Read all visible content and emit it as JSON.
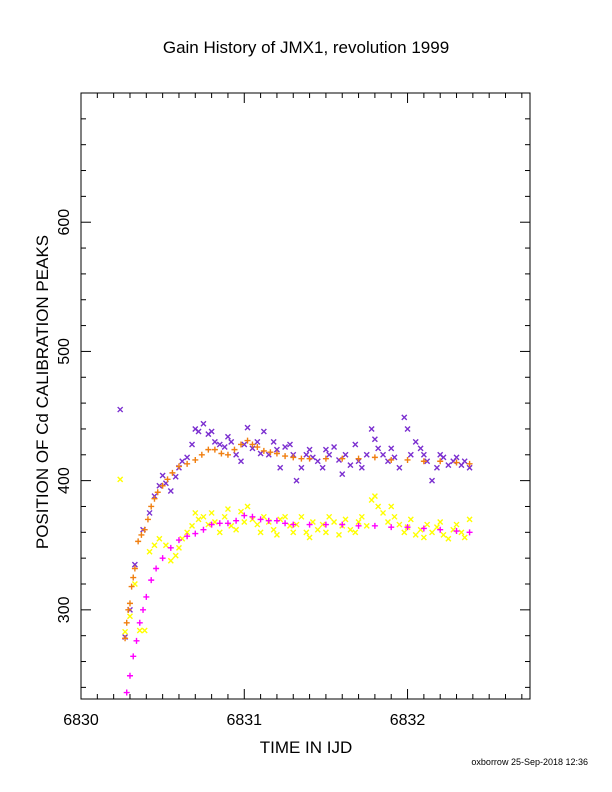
{
  "colors": {
    "background": "#ffffff",
    "axes": "#000000",
    "purple": "#7b2fd0",
    "orange": "#f07f10",
    "yellow": "#ffff00",
    "magenta": "#ff00ff"
  },
  "footer": "oxborrow 25-Sep-2018 12:36",
  "chart_data": {
    "type": "scatter",
    "title": "Gain History of JMX1, revolution 1999",
    "xlabel": "TIME IN IJD",
    "ylabel": "POSITION OF Cd CALIBRATION PEAKS",
    "xlim": [
      6830.0,
      6832.75
    ],
    "ylim": [
      231,
      700
    ],
    "xticks": [
      6830,
      6831,
      6832
    ],
    "yticks": [
      300,
      400,
      500,
      600
    ],
    "grid": false,
    "legend": "none",
    "series": [
      {
        "color": "purple",
        "marker": "x",
        "points": [
          [
            6830.24,
            455
          ],
          [
            6830.27,
            279
          ],
          [
            6830.3,
            300
          ],
          [
            6830.33,
            335
          ],
          [
            6830.38,
            362
          ],
          [
            6830.42,
            375
          ],
          [
            6830.45,
            388
          ],
          [
            6830.48,
            396
          ],
          [
            6830.5,
            404
          ],
          [
            6830.52,
            398
          ],
          [
            6830.55,
            392
          ],
          [
            6830.58,
            403
          ],
          [
            6830.6,
            410
          ],
          [
            6830.62,
            415
          ],
          [
            6830.65,
            418
          ],
          [
            6830.68,
            428
          ],
          [
            6830.7,
            440
          ],
          [
            6830.72,
            438
          ],
          [
            6830.75,
            444
          ],
          [
            6830.78,
            436
          ],
          [
            6830.8,
            438
          ],
          [
            6830.82,
            430
          ],
          [
            6830.85,
            428
          ],
          [
            6830.88,
            426
          ],
          [
            6830.9,
            434
          ],
          [
            6830.92,
            430
          ],
          [
            6830.95,
            420
          ],
          [
            6830.98,
            415
          ],
          [
            6831.0,
            428
          ],
          [
            6831.02,
            441
          ],
          [
            6831.05,
            425
          ],
          [
            6831.08,
            430
          ],
          [
            6831.1,
            421
          ],
          [
            6831.12,
            438
          ],
          [
            6831.15,
            420
          ],
          [
            6831.18,
            430
          ],
          [
            6831.2,
            424
          ],
          [
            6831.22,
            410
          ],
          [
            6831.25,
            426
          ],
          [
            6831.28,
            428
          ],
          [
            6831.3,
            420
          ],
          [
            6831.32,
            400
          ],
          [
            6831.35,
            410
          ],
          [
            6831.38,
            420
          ],
          [
            6831.4,
            424
          ],
          [
            6831.42,
            418
          ],
          [
            6831.45,
            415
          ],
          [
            6831.48,
            410
          ],
          [
            6831.5,
            424
          ],
          [
            6831.52,
            420
          ],
          [
            6831.55,
            426
          ],
          [
            6831.58,
            416
          ],
          [
            6831.6,
            405
          ],
          [
            6831.62,
            420
          ],
          [
            6831.65,
            412
          ],
          [
            6831.68,
            428
          ],
          [
            6831.7,
            415
          ],
          [
            6831.72,
            410
          ],
          [
            6831.75,
            420
          ],
          [
            6831.78,
            440
          ],
          [
            6831.8,
            432
          ],
          [
            6831.82,
            425
          ],
          [
            6831.85,
            420
          ],
          [
            6831.88,
            415
          ],
          [
            6831.9,
            425
          ],
          [
            6831.92,
            418
          ],
          [
            6831.95,
            410
          ],
          [
            6831.98,
            449
          ],
          [
            6832.0,
            440
          ],
          [
            6832.02,
            420
          ],
          [
            6832.05,
            430
          ],
          [
            6832.08,
            425
          ],
          [
            6832.1,
            420
          ],
          [
            6832.12,
            415
          ],
          [
            6832.15,
            400
          ],
          [
            6832.18,
            410
          ],
          [
            6832.2,
            420
          ],
          [
            6832.22,
            418
          ],
          [
            6832.25,
            412
          ],
          [
            6832.28,
            415
          ],
          [
            6832.3,
            418
          ],
          [
            6832.33,
            412
          ],
          [
            6832.35,
            415
          ],
          [
            6832.38,
            410
          ]
        ]
      },
      {
        "color": "yellow",
        "marker": "x",
        "points": [
          [
            6830.24,
            401
          ],
          [
            6830.27,
            283
          ],
          [
            6830.3,
            295
          ],
          [
            6830.33,
            320
          ],
          [
            6830.36,
            284
          ],
          [
            6830.39,
            284
          ],
          [
            6830.42,
            345
          ],
          [
            6830.45,
            350
          ],
          [
            6830.48,
            355
          ],
          [
            6830.52,
            350
          ],
          [
            6830.55,
            338
          ],
          [
            6830.58,
            342
          ],
          [
            6830.6,
            348
          ],
          [
            6830.62,
            355
          ],
          [
            6830.65,
            360
          ],
          [
            6830.68,
            365
          ],
          [
            6830.7,
            375
          ],
          [
            6830.72,
            370
          ],
          [
            6830.75,
            372
          ],
          [
            6830.78,
            366
          ],
          [
            6830.8,
            375
          ],
          [
            6830.82,
            368
          ],
          [
            6830.85,
            360
          ],
          [
            6830.88,
            372
          ],
          [
            6830.9,
            378
          ],
          [
            6830.92,
            365
          ],
          [
            6830.95,
            362
          ],
          [
            6830.98,
            376
          ],
          [
            6831.0,
            368
          ],
          [
            6831.02,
            380
          ],
          [
            6831.05,
            370
          ],
          [
            6831.08,
            366
          ],
          [
            6831.1,
            360
          ],
          [
            6831.12,
            372
          ],
          [
            6831.15,
            368
          ],
          [
            6831.18,
            362
          ],
          [
            6831.2,
            358
          ],
          [
            6831.22,
            370
          ],
          [
            6831.25,
            372
          ],
          [
            6831.28,
            365
          ],
          [
            6831.3,
            360
          ],
          [
            6831.32,
            366
          ],
          [
            6831.35,
            372
          ],
          [
            6831.38,
            360
          ],
          [
            6831.4,
            356
          ],
          [
            6831.42,
            368
          ],
          [
            6831.45,
            362
          ],
          [
            6831.48,
            366
          ],
          [
            6831.5,
            360
          ],
          [
            6831.52,
            372
          ],
          [
            6831.55,
            368
          ],
          [
            6831.58,
            358
          ],
          [
            6831.6,
            365
          ],
          [
            6831.62,
            370
          ],
          [
            6831.65,
            362
          ],
          [
            6831.68,
            360
          ],
          [
            6831.7,
            368
          ],
          [
            6831.72,
            372
          ],
          [
            6831.75,
            365
          ],
          [
            6831.78,
            385
          ],
          [
            6831.8,
            388
          ],
          [
            6831.82,
            380
          ],
          [
            6831.85,
            375
          ],
          [
            6831.88,
            368
          ],
          [
            6831.9,
            380
          ],
          [
            6831.92,
            372
          ],
          [
            6831.95,
            366
          ],
          [
            6831.98,
            360
          ],
          [
            6832.0,
            364
          ],
          [
            6832.02,
            370
          ],
          [
            6832.05,
            358
          ],
          [
            6832.08,
            362
          ],
          [
            6832.1,
            356
          ],
          [
            6832.12,
            366
          ],
          [
            6832.15,
            360
          ],
          [
            6832.18,
            364
          ],
          [
            6832.2,
            368
          ],
          [
            6832.22,
            358
          ],
          [
            6832.25,
            355
          ],
          [
            6832.28,
            362
          ],
          [
            6832.3,
            366
          ],
          [
            6832.33,
            360
          ],
          [
            6832.35,
            356
          ],
          [
            6832.38,
            370
          ]
        ]
      },
      {
        "color": "orange",
        "marker": "+",
        "points": [
          [
            6830.27,
            278
          ],
          [
            6830.28,
            290
          ],
          [
            6830.29,
            300
          ],
          [
            6830.3,
            305
          ],
          [
            6830.31,
            318
          ],
          [
            6830.32,
            325
          ],
          [
            6830.33,
            332
          ],
          [
            6830.35,
            353
          ],
          [
            6830.37,
            358
          ],
          [
            6830.39,
            362
          ],
          [
            6830.41,
            370
          ],
          [
            6830.43,
            380
          ],
          [
            6830.45,
            386
          ],
          [
            6830.47,
            391
          ],
          [
            6830.5,
            396
          ],
          [
            6830.53,
            401
          ],
          [
            6830.56,
            406
          ],
          [
            6830.6,
            411
          ],
          [
            6830.65,
            413
          ],
          [
            6830.7,
            416
          ],
          [
            6830.74,
            420
          ],
          [
            6830.78,
            424
          ],
          [
            6830.82,
            424
          ],
          [
            6830.86,
            421
          ],
          [
            6830.9,
            420
          ],
          [
            6830.94,
            424
          ],
          [
            6830.98,
            428
          ],
          [
            6831.02,
            431
          ],
          [
            6831.05,
            428
          ],
          [
            6831.08,
            426
          ],
          [
            6831.12,
            423
          ],
          [
            6831.16,
            422
          ],
          [
            6831.2,
            421
          ],
          [
            6831.25,
            419
          ],
          [
            6831.3,
            418
          ],
          [
            6831.35,
            417
          ],
          [
            6831.4,
            417
          ],
          [
            6831.5,
            417
          ],
          [
            6831.6,
            417
          ],
          [
            6831.7,
            417
          ],
          [
            6831.8,
            418
          ],
          [
            6831.9,
            416
          ],
          [
            6832.0,
            416
          ],
          [
            6832.1,
            415
          ],
          [
            6832.2,
            415
          ],
          [
            6832.3,
            414
          ],
          [
            6832.38,
            413
          ]
        ]
      },
      {
        "color": "magenta",
        "marker": "+",
        "points": [
          [
            6830.28,
            236
          ],
          [
            6830.3,
            249
          ],
          [
            6830.32,
            264
          ],
          [
            6830.34,
            276
          ],
          [
            6830.36,
            290
          ],
          [
            6830.38,
            300
          ],
          [
            6830.4,
            310
          ],
          [
            6830.43,
            323
          ],
          [
            6830.46,
            332
          ],
          [
            6830.5,
            340
          ],
          [
            6830.55,
            348
          ],
          [
            6830.6,
            354
          ],
          [
            6830.65,
            357
          ],
          [
            6830.7,
            359
          ],
          [
            6830.75,
            362
          ],
          [
            6830.8,
            366
          ],
          [
            6830.85,
            367
          ],
          [
            6830.9,
            367
          ],
          [
            6830.95,
            369
          ],
          [
            6831.0,
            373
          ],
          [
            6831.05,
            372
          ],
          [
            6831.1,
            370
          ],
          [
            6831.15,
            369
          ],
          [
            6831.2,
            369
          ],
          [
            6831.25,
            367
          ],
          [
            6831.3,
            366
          ],
          [
            6831.4,
            366
          ],
          [
            6831.5,
            366
          ],
          [
            6831.6,
            366
          ],
          [
            6831.7,
            365
          ],
          [
            6831.8,
            365
          ],
          [
            6831.9,
            364
          ],
          [
            6832.0,
            364
          ],
          [
            6832.1,
            363
          ],
          [
            6832.2,
            362
          ],
          [
            6832.3,
            361
          ],
          [
            6832.38,
            360
          ]
        ]
      }
    ]
  }
}
